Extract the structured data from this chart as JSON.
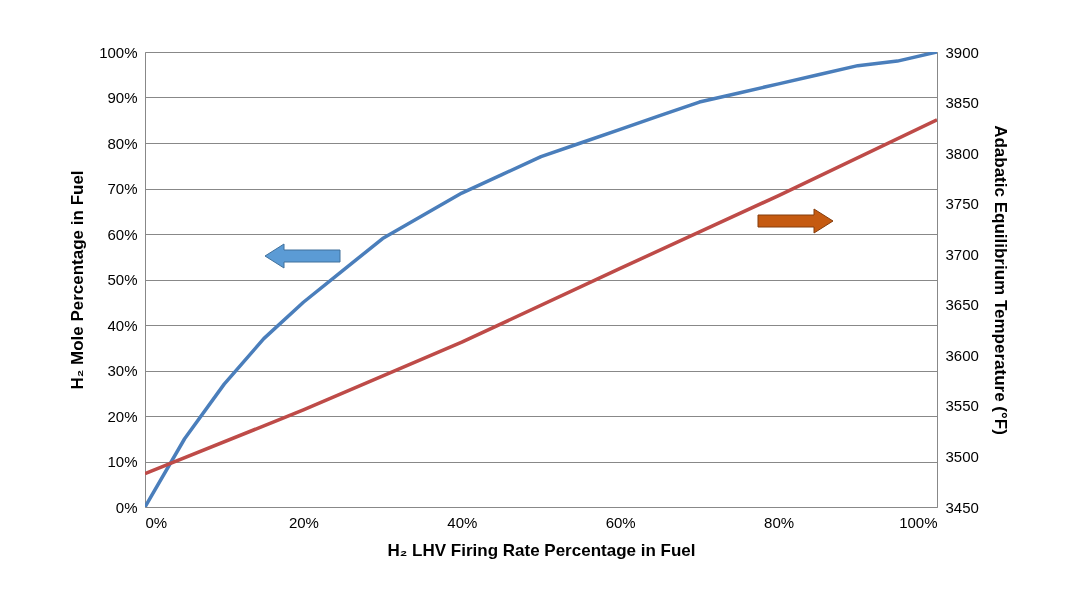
{
  "chart_data": {
    "type": "line",
    "xlabel": "H₂ LHV Firing Rate Percentage in Fuel",
    "ylabel": "H₂ Mole Percentage in Fuel",
    "y2label": "Adabatic Equilibrium Temperature (°F)",
    "xlim": [
      0,
      100
    ],
    "xticks": [
      {
        "value": 0,
        "label": "0%"
      },
      {
        "value": 20,
        "label": "20%"
      },
      {
        "value": 40,
        "label": "40%"
      },
      {
        "value": 60,
        "label": "60%"
      },
      {
        "value": 80,
        "label": "80%"
      },
      {
        "value": 100,
        "label": "100%"
      }
    ],
    "ylim": [
      0,
      100
    ],
    "yticks": [
      {
        "value": 0,
        "label": "0%"
      },
      {
        "value": 10,
        "label": "10%"
      },
      {
        "value": 20,
        "label": "20%"
      },
      {
        "value": 30,
        "label": "30%"
      },
      {
        "value": 40,
        "label": "40%"
      },
      {
        "value": 50,
        "label": "50%"
      },
      {
        "value": 60,
        "label": "60%"
      },
      {
        "value": 70,
        "label": "70%"
      },
      {
        "value": 80,
        "label": "80%"
      },
      {
        "value": 90,
        "label": "90%"
      },
      {
        "value": 100,
        "label": "100%"
      }
    ],
    "y2lim": [
      3450,
      3900
    ],
    "y2ticks": [
      3450,
      3500,
      3550,
      3600,
      3650,
      3700,
      3750,
      3800,
      3850,
      3900
    ],
    "grid": "y",
    "legend": false,
    "series": [
      {
        "color": "#4a7ebb",
        "x": [
          0,
          5,
          10,
          15,
          20,
          25,
          30,
          35,
          40,
          45,
          50,
          55,
          60,
          65,
          70,
          75,
          80,
          85,
          90,
          95,
          100
        ],
        "values": [
          0,
          15,
          27,
          37,
          45,
          52,
          59,
          64,
          69,
          73,
          77,
          80,
          83,
          86,
          89,
          91,
          93,
          95,
          97,
          98,
          100
        ]
      },
      {
        "color": "#be4b48",
        "axis": "y2",
        "x": [
          0,
          20,
          40,
          60,
          80,
          100
        ],
        "values": [
          3483,
          3546,
          3613,
          3686,
          3758,
          3833
        ]
      }
    ]
  }
}
